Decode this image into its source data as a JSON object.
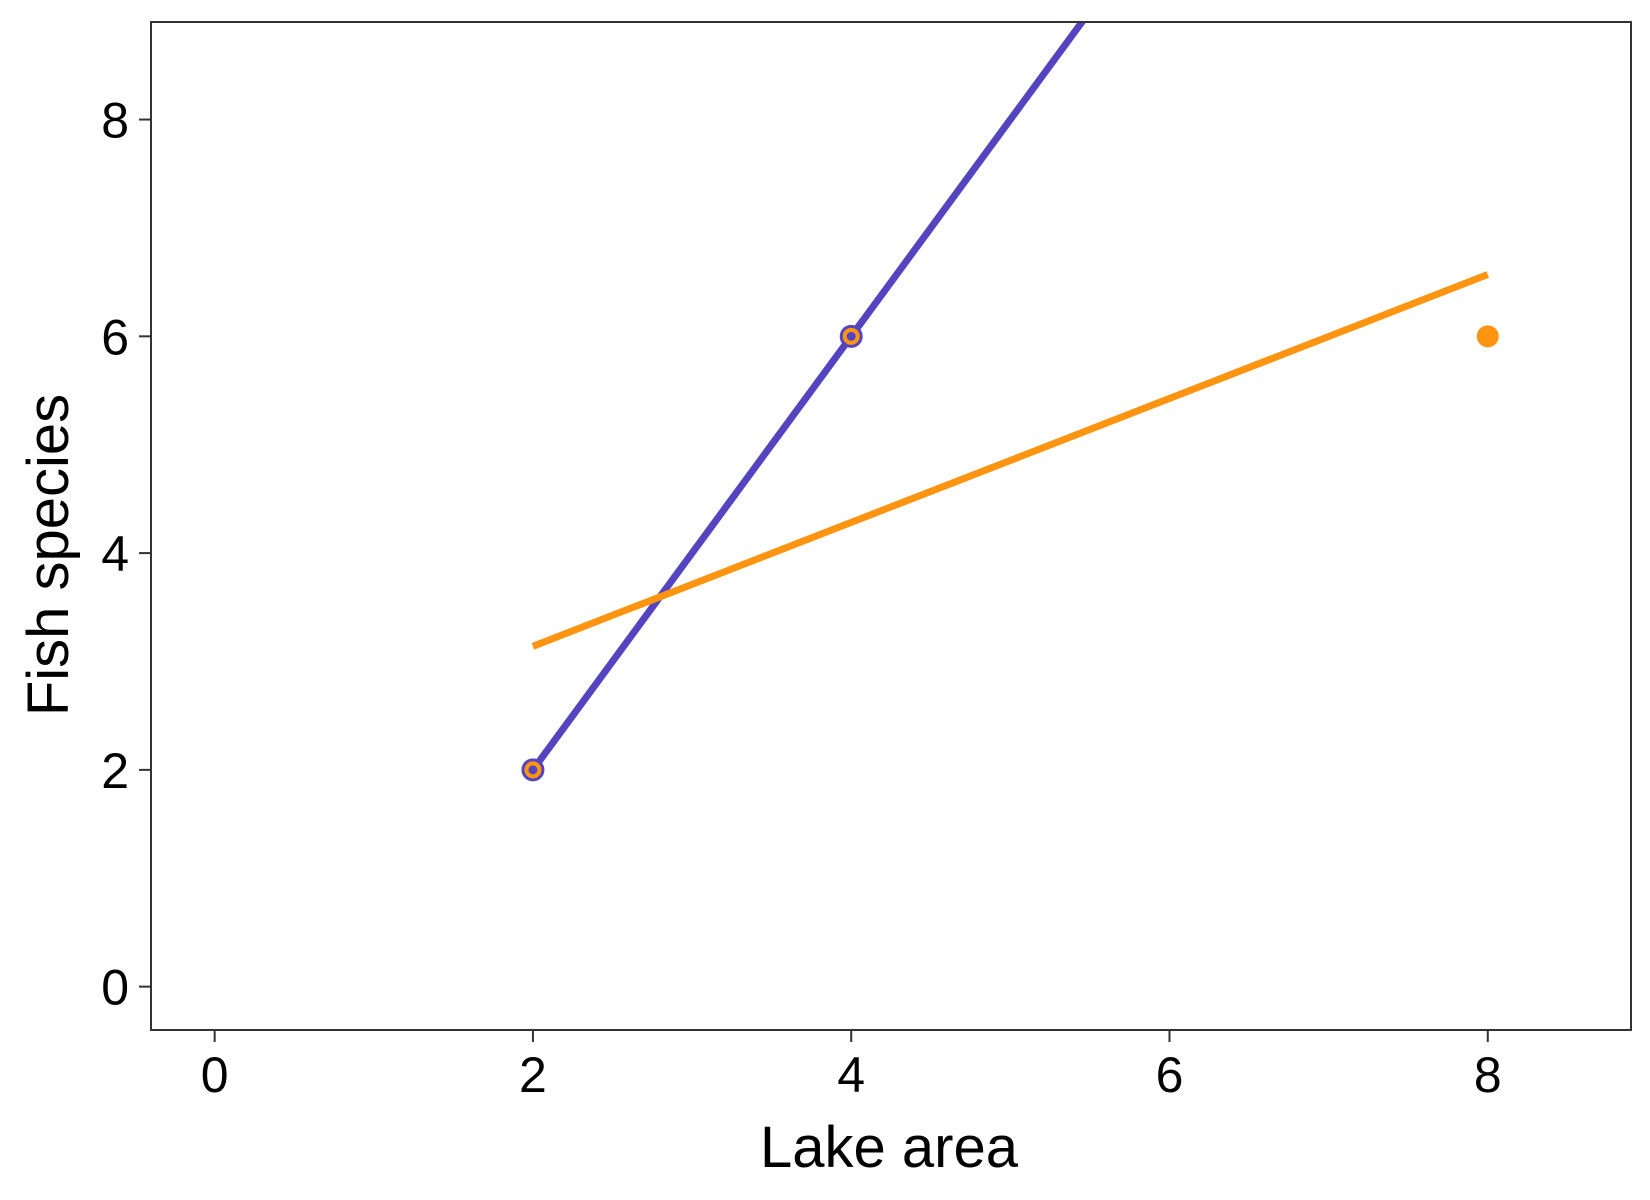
{
  "chart_data": {
    "type": "scatter",
    "title": "",
    "xlabel": "Lake area",
    "ylabel": "Fish species",
    "xlim": [
      -0.4,
      8.9
    ],
    "ylim": [
      -0.4,
      8.9
    ],
    "x_ticks": [
      0,
      2,
      4,
      6,
      8
    ],
    "y_ticks": [
      0,
      2,
      4,
      6,
      8
    ],
    "grid": false,
    "legend": "none",
    "series": [
      {
        "kind": "points",
        "color": "#FF9410",
        "outline": "#5544C0",
        "points": [
          [
            2,
            2
          ],
          [
            4,
            6
          ],
          [
            8,
            6
          ]
        ]
      },
      {
        "kind": "fit-line",
        "color": "#5544C0",
        "x": [
          2,
          5.48
        ],
        "y": [
          2,
          8.96
        ]
      },
      {
        "kind": "fit-line",
        "color": "#FF9410",
        "x": [
          2,
          8
        ],
        "y": [
          3.14,
          6.57
        ]
      }
    ]
  }
}
